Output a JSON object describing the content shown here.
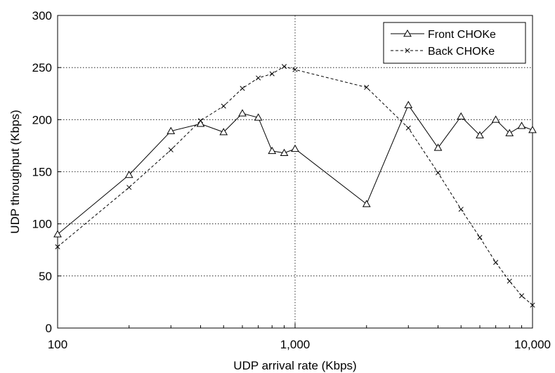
{
  "chart_data": {
    "type": "line",
    "title": "",
    "xlabel": "UDP arrival rate (Kbps)",
    "ylabel": "UDP throughput (Kbps)",
    "x_scale": "log",
    "xlim": [
      100,
      10000
    ],
    "ylim": [
      0,
      300
    ],
    "x_ticks": [
      100,
      1000,
      10000
    ],
    "x_tick_labels": [
      "100",
      "1,000",
      "10,000"
    ],
    "y_ticks": [
      0,
      50,
      100,
      150,
      200,
      250,
      300
    ],
    "y_tick_labels": [
      "0",
      "50",
      "100",
      "150",
      "200",
      "250",
      "300"
    ],
    "grid": true,
    "legend_position": "top-right",
    "series": [
      {
        "name": "Front CHOKe",
        "line_style": "solid",
        "marker": "triangle",
        "color": "#000000",
        "points": [
          [
            100,
            90
          ],
          [
            200,
            147
          ],
          [
            300,
            189
          ],
          [
            400,
            196
          ],
          [
            500,
            188
          ],
          [
            600,
            206
          ],
          [
            700,
            202
          ],
          [
            800,
            170
          ],
          [
            900,
            168
          ],
          [
            1000,
            172
          ],
          [
            2000,
            119
          ],
          [
            3000,
            214
          ],
          [
            4000,
            173
          ],
          [
            5000,
            203
          ],
          [
            6000,
            185
          ],
          [
            7000,
            200
          ],
          [
            8000,
            187
          ],
          [
            9000,
            194
          ],
          [
            10000,
            190
          ]
        ]
      },
      {
        "name": "Back CHOKe",
        "line_style": "dashed",
        "marker": "x",
        "color": "#000000",
        "points": [
          [
            100,
            78
          ],
          [
            200,
            135
          ],
          [
            300,
            171
          ],
          [
            400,
            199
          ],
          [
            500,
            213
          ],
          [
            600,
            230
          ],
          [
            700,
            240
          ],
          [
            800,
            244
          ],
          [
            900,
            251
          ],
          [
            1000,
            248
          ],
          [
            2000,
            231
          ],
          [
            3000,
            192
          ],
          [
            4000,
            149
          ],
          [
            5000,
            114
          ],
          [
            6000,
            87
          ],
          [
            7000,
            63
          ],
          [
            8000,
            45
          ],
          [
            9000,
            31
          ],
          [
            10000,
            22
          ]
        ]
      }
    ]
  }
}
